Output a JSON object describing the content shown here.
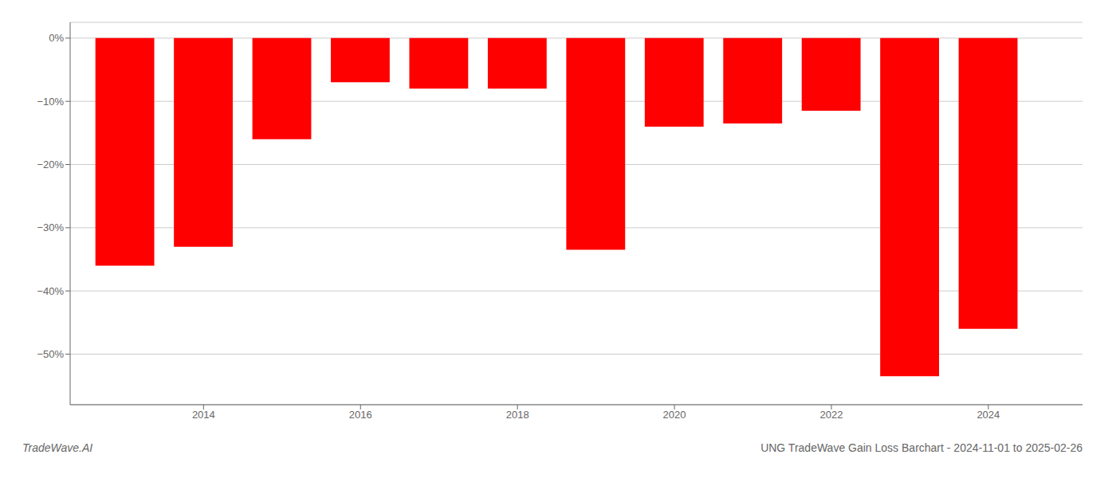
{
  "chart_data": {
    "type": "bar",
    "title": "UNG TradeWave Gain Loss Barchart - 2024-11-01 to 2025-02-26",
    "annotations": [
      "TradeWave.AI"
    ],
    "x": [
      2013,
      2014,
      2015,
      2016,
      2017,
      2018,
      2019,
      2020,
      2021,
      2022,
      2023,
      2024
    ],
    "values": [
      -36.0,
      -33.0,
      -16.0,
      -7.0,
      -8.0,
      -8.0,
      -33.5,
      -14.0,
      -13.5,
      -11.5,
      -53.5,
      -46.0
    ],
    "color": "#ff0000",
    "xlim": [
      2012.3,
      2025.2
    ],
    "xticks": [
      2014,
      2016,
      2018,
      2020,
      2022,
      2024
    ],
    "ylim": [
      -58,
      2.5
    ],
    "yticks": [
      {
        "value": 0,
        "label": "0%"
      },
      {
        "value": -10,
        "label": "−10%"
      },
      {
        "value": -20,
        "label": "−20%"
      },
      {
        "value": -30,
        "label": "−30%"
      },
      {
        "value": -40,
        "label": "−40%"
      },
      {
        "value": -50,
        "label": "−50%"
      }
    ],
    "grid": true
  }
}
